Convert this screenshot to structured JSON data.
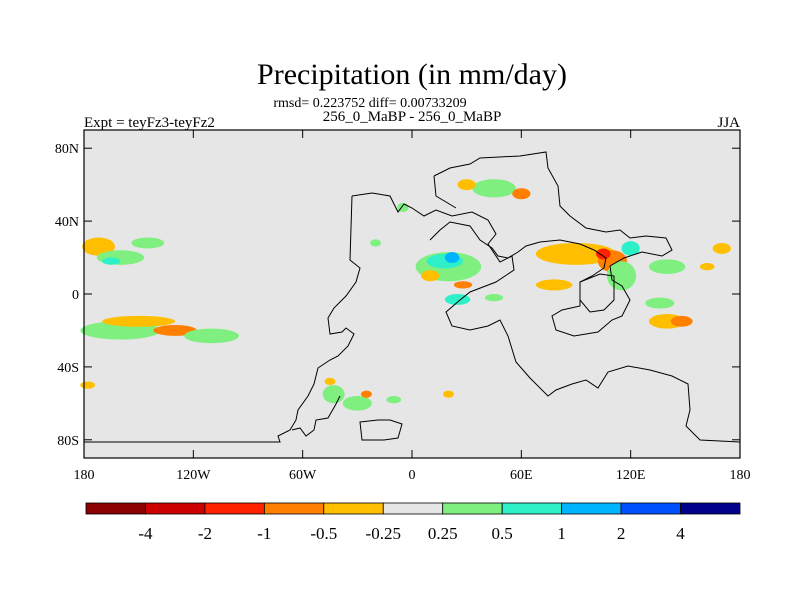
{
  "chart_data": {
    "type": "heatmap",
    "title": "Precipitation (in mm/day)",
    "stats_line": "rmsd= 0.223752 diff= 0.00733209",
    "experiment_label": "256_0_MaBP - 256_0_MaBP",
    "left_label": "Expt = teyFz3-teyFz2",
    "right_label": "JJA",
    "x_ticks": [
      {
        "value": -180,
        "label": "180"
      },
      {
        "value": -120,
        "label": "120W"
      },
      {
        "value": -60,
        "label": "60W"
      },
      {
        "value": 0,
        "label": "0"
      },
      {
        "value": 60,
        "label": "60E"
      },
      {
        "value": 120,
        "label": "120E"
      },
      {
        "value": 180,
        "label": "180"
      }
    ],
    "y_ticks": [
      {
        "value": 80,
        "label": "80N"
      },
      {
        "value": 40,
        "label": "40N"
      },
      {
        "value": 0,
        "label": "0"
      },
      {
        "value": -40,
        "label": "40S"
      },
      {
        "value": -80,
        "label": "80S"
      }
    ],
    "xlim": [
      -180,
      180
    ],
    "ylim": [
      -90,
      90
    ],
    "colorbar": {
      "colors": [
        "#8b0000",
        "#cc0000",
        "#ff2200",
        "#ff7f00",
        "#ffbf00",
        "#e6e6e6",
        "#7ff07f",
        "#2ef0c8",
        "#00b4ff",
        "#0050ff",
        "#00008b"
      ],
      "labels": [
        "-4",
        "-2",
        "-1",
        "-0.5",
        "-0.25",
        "0.25",
        "0.5",
        "1",
        "2",
        "4"
      ]
    },
    "regions": [
      {
        "lon": -172,
        "lat": 26,
        "rx": 9,
        "ry": 5,
        "cls": 4
      },
      {
        "lon": -160,
        "lat": 20,
        "rx": 13,
        "ry": 4,
        "cls": 6
      },
      {
        "lon": -165,
        "lat": 18,
        "rx": 5,
        "ry": 2,
        "cls": 7
      },
      {
        "lon": -145,
        "lat": 28,
        "rx": 9,
        "ry": 3,
        "cls": 6
      },
      {
        "lon": -160,
        "lat": -20,
        "rx": 22,
        "ry": 5,
        "cls": 6
      },
      {
        "lon": -150,
        "lat": -15,
        "rx": 20,
        "ry": 3,
        "cls": 4
      },
      {
        "lon": -130,
        "lat": -20,
        "rx": 12,
        "ry": 3,
        "cls": 3
      },
      {
        "lon": -110,
        "lat": -23,
        "rx": 15,
        "ry": 4,
        "cls": 6
      },
      {
        "lon": -178,
        "lat": -50,
        "rx": 4,
        "ry": 2,
        "cls": 4
      },
      {
        "lon": -20,
        "lat": 28,
        "rx": 3,
        "ry": 2,
        "cls": 6
      },
      {
        "lon": -5,
        "lat": 47,
        "rx": 3,
        "ry": 2,
        "cls": 6
      },
      {
        "lon": 20,
        "lat": 15,
        "rx": 18,
        "ry": 8,
        "cls": 6
      },
      {
        "lon": 18,
        "lat": 18,
        "rx": 10,
        "ry": 4,
        "cls": 7
      },
      {
        "lon": 22,
        "lat": 20,
        "rx": 4,
        "ry": 3,
        "cls": 8
      },
      {
        "lon": 10,
        "lat": 10,
        "rx": 5,
        "ry": 3,
        "cls": 4
      },
      {
        "lon": 28,
        "lat": 5,
        "rx": 5,
        "ry": 2,
        "cls": 3
      },
      {
        "lon": 25,
        "lat": -3,
        "rx": 7,
        "ry": 3,
        "cls": 7
      },
      {
        "lon": 45,
        "lat": -2,
        "rx": 5,
        "ry": 2,
        "cls": 6
      },
      {
        "lon": 90,
        "lat": 22,
        "rx": 22,
        "ry": 6,
        "cls": 4
      },
      {
        "lon": 110,
        "lat": 18,
        "rx": 8,
        "ry": 6,
        "cls": 3
      },
      {
        "lon": 105,
        "lat": 22,
        "rx": 4,
        "ry": 3,
        "cls": 2
      },
      {
        "lon": 115,
        "lat": 10,
        "rx": 8,
        "ry": 8,
        "cls": 6
      },
      {
        "lon": 120,
        "lat": 25,
        "rx": 5,
        "ry": 4,
        "cls": 7
      },
      {
        "lon": 140,
        "lat": 15,
        "rx": 10,
        "ry": 4,
        "cls": 6
      },
      {
        "lon": 170,
        "lat": 25,
        "rx": 5,
        "ry": 3,
        "cls": 4
      },
      {
        "lon": 162,
        "lat": 15,
        "rx": 4,
        "ry": 2,
        "cls": 4
      },
      {
        "lon": 78,
        "lat": 5,
        "rx": 10,
        "ry": 3,
        "cls": 4
      },
      {
        "lon": 140,
        "lat": -15,
        "rx": 10,
        "ry": 4,
        "cls": 4
      },
      {
        "lon": 148,
        "lat": -15,
        "rx": 6,
        "ry": 3,
        "cls": 3
      },
      {
        "lon": 136,
        "lat": -5,
        "rx": 8,
        "ry": 3,
        "cls": 6
      },
      {
        "lon": 45,
        "lat": 58,
        "rx": 12,
        "ry": 5,
        "cls": 6
      },
      {
        "lon": 30,
        "lat": 60,
        "rx": 5,
        "ry": 3,
        "cls": 4
      },
      {
        "lon": 60,
        "lat": 55,
        "rx": 5,
        "ry": 3,
        "cls": 3
      },
      {
        "lon": -5,
        "lat": 48,
        "rx": 3,
        "ry": 2,
        "cls": 6
      },
      {
        "lon": -43,
        "lat": -55,
        "rx": 6,
        "ry": 5,
        "cls": 6
      },
      {
        "lon": -30,
        "lat": -60,
        "rx": 8,
        "ry": 4,
        "cls": 6
      },
      {
        "lon": -45,
        "lat": -48,
        "rx": 3,
        "ry": 2,
        "cls": 4
      },
      {
        "lon": -25,
        "lat": -55,
        "rx": 3,
        "ry": 2,
        "cls": 3
      },
      {
        "lon": -10,
        "lat": -58,
        "rx": 4,
        "ry": 2,
        "cls": 6
      },
      {
        "lon": 20,
        "lat": -55,
        "rx": 3,
        "ry": 2,
        "cls": 4
      }
    ]
  }
}
